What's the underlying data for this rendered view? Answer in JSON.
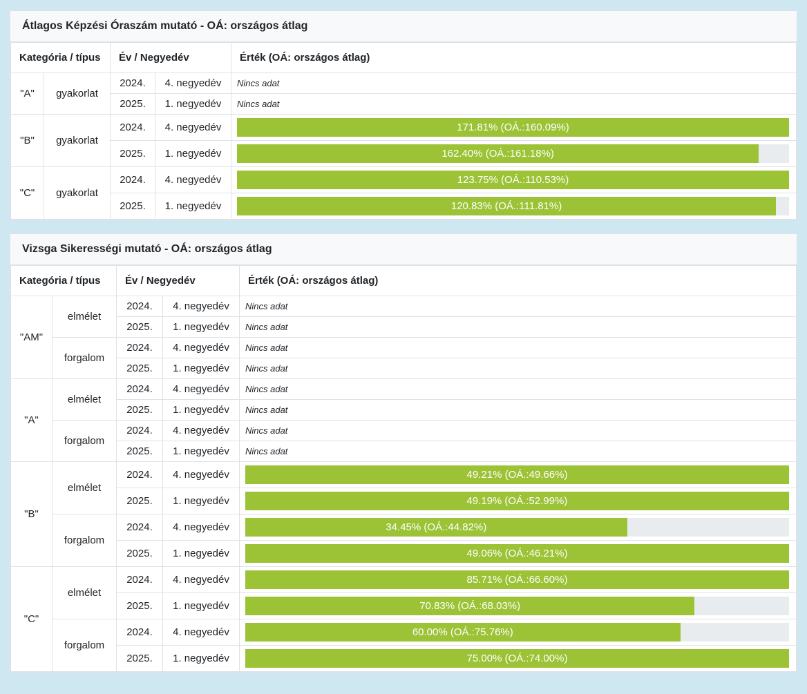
{
  "colors": {
    "page_background": "#cfe7f0",
    "bar_fill": "#9cc236",
    "bar_track": "#e9ecef",
    "border": "#dee2e6",
    "title_background": "#f8f9fa",
    "text": "#212529",
    "bar_text": "#ffffff"
  },
  "tables": [
    {
      "title": "Átlagos Képzési Óraszám mutató - OÁ: országos átlag",
      "headers": {
        "category": "Kategória / típus",
        "period": "Év / Negyedév",
        "value": "Érték (OÁ: országos átlag)"
      },
      "no_data_label": "Nincs adat",
      "groups": [
        {
          "category": "\"A\"",
          "types": [
            {
              "type": "gyakorlat",
              "rows": [
                {
                  "year": "2024.",
                  "quarter": "4. negyedév",
                  "value": null,
                  "oa": null,
                  "label": null
                },
                {
                  "year": "2025.",
                  "quarter": "1. negyedév",
                  "value": null,
                  "oa": null,
                  "label": null
                }
              ]
            }
          ]
        },
        {
          "category": "\"B\"",
          "types": [
            {
              "type": "gyakorlat",
              "rows": [
                {
                  "year": "2024.",
                  "quarter": "4. negyedév",
                  "value": 171.81,
                  "oa": 160.09,
                  "label": "171.81% (OÁ.:160.09%)"
                },
                {
                  "year": "2025.",
                  "quarter": "1. negyedév",
                  "value": 162.4,
                  "oa": 161.18,
                  "label": "162.40% (OÁ.:161.18%)"
                }
              ]
            }
          ]
        },
        {
          "category": "\"C\"",
          "types": [
            {
              "type": "gyakorlat",
              "rows": [
                {
                  "year": "2024.",
                  "quarter": "4. negyedév",
                  "value": 123.75,
                  "oa": 110.53,
                  "label": "123.75% (OÁ.:110.53%)"
                },
                {
                  "year": "2025.",
                  "quarter": "1. negyedév",
                  "value": 120.83,
                  "oa": 111.81,
                  "label": "120.83% (OÁ.:111.81%)"
                }
              ]
            }
          ]
        }
      ]
    },
    {
      "title": "Vizsga Sikerességi mutató - OÁ: országos átlag",
      "headers": {
        "category": "Kategória / típus",
        "period": "Év / Negyedév",
        "value": "Érték (OÁ: országos átlag)"
      },
      "no_data_label": "Nincs adat",
      "groups": [
        {
          "category": "\"AM\"",
          "types": [
            {
              "type": "elmélet",
              "rows": [
                {
                  "year": "2024.",
                  "quarter": "4. negyedév",
                  "value": null,
                  "oa": null,
                  "label": null
                },
                {
                  "year": "2025.",
                  "quarter": "1. negyedév",
                  "value": null,
                  "oa": null,
                  "label": null
                }
              ]
            },
            {
              "type": "forgalom",
              "rows": [
                {
                  "year": "2024.",
                  "quarter": "4. negyedév",
                  "value": null,
                  "oa": null,
                  "label": null
                },
                {
                  "year": "2025.",
                  "quarter": "1. negyedév",
                  "value": null,
                  "oa": null,
                  "label": null
                }
              ]
            }
          ]
        },
        {
          "category": "\"A\"",
          "types": [
            {
              "type": "elmélet",
              "rows": [
                {
                  "year": "2024.",
                  "quarter": "4. negyedév",
                  "value": null,
                  "oa": null,
                  "label": null
                },
                {
                  "year": "2025.",
                  "quarter": "1. negyedév",
                  "value": null,
                  "oa": null,
                  "label": null
                }
              ]
            },
            {
              "type": "forgalom",
              "rows": [
                {
                  "year": "2024.",
                  "quarter": "4. negyedév",
                  "value": null,
                  "oa": null,
                  "label": null
                },
                {
                  "year": "2025.",
                  "quarter": "1. negyedév",
                  "value": null,
                  "oa": null,
                  "label": null
                }
              ]
            }
          ]
        },
        {
          "category": "\"B\"",
          "types": [
            {
              "type": "elmélet",
              "rows": [
                {
                  "year": "2024.",
                  "quarter": "4. negyedév",
                  "value": 49.21,
                  "oa": 49.66,
                  "label": "49.21% (OÁ.:49.66%)"
                },
                {
                  "year": "2025.",
                  "quarter": "1. negyedév",
                  "value": 49.19,
                  "oa": 52.99,
                  "label": "49.19% (OÁ.:52.99%)"
                }
              ]
            },
            {
              "type": "forgalom",
              "rows": [
                {
                  "year": "2024.",
                  "quarter": "4. negyedév",
                  "value": 34.45,
                  "oa": 44.82,
                  "label": "34.45% (OÁ.:44.82%)"
                },
                {
                  "year": "2025.",
                  "quarter": "1. negyedév",
                  "value": 49.06,
                  "oa": 46.21,
                  "label": "49.06% (OÁ.:46.21%)"
                }
              ]
            }
          ]
        },
        {
          "category": "\"C\"",
          "types": [
            {
              "type": "elmélet",
              "rows": [
                {
                  "year": "2024.",
                  "quarter": "4. negyedév",
                  "value": 85.71,
                  "oa": 66.6,
                  "label": "85.71% (OÁ.:66.60%)"
                },
                {
                  "year": "2025.",
                  "quarter": "1. negyedév",
                  "value": 70.83,
                  "oa": 68.03,
                  "label": "70.83% (OÁ.:68.03%)"
                }
              ]
            },
            {
              "type": "forgalom",
              "rows": [
                {
                  "year": "2024.",
                  "quarter": "4. negyedév",
                  "value": 60.0,
                  "oa": 75.76,
                  "label": "60.00% (OÁ.:75.76%)"
                },
                {
                  "year": "2025.",
                  "quarter": "1. negyedév",
                  "value": 75.0,
                  "oa": 74.0,
                  "label": "75.00% (OÁ.:74.00%)"
                }
              ]
            }
          ]
        }
      ]
    }
  ],
  "chart_data": [
    {
      "type": "table",
      "title": "Átlagos Képzési Óraszám mutató - OÁ: országos átlag",
      "columns": [
        "Kategória",
        "típus",
        "Év",
        "Negyedév",
        "Érték %",
        "Országos átlag %"
      ],
      "rows": [
        [
          "\"A\"",
          "gyakorlat",
          "2024.",
          "4. negyedév",
          null,
          null
        ],
        [
          "\"A\"",
          "gyakorlat",
          "2025.",
          "1. negyedév",
          null,
          null
        ],
        [
          "\"B\"",
          "gyakorlat",
          "2024.",
          "4. negyedév",
          171.81,
          160.09
        ],
        [
          "\"B\"",
          "gyakorlat",
          "2025.",
          "1. negyedév",
          162.4,
          161.18
        ],
        [
          "\"C\"",
          "gyakorlat",
          "2024.",
          "4. negyedév",
          123.75,
          110.53
        ],
        [
          "\"C\"",
          "gyakorlat",
          "2025.",
          "1. negyedév",
          120.83,
          111.81
        ]
      ],
      "bar_scaling": "bar width = value / max(value in category+type group) * 100%"
    },
    {
      "type": "table",
      "title": "Vizsga Sikerességi mutató - OÁ: országos átlag",
      "columns": [
        "Kategória",
        "típus",
        "Év",
        "Negyedév",
        "Érték %",
        "Országos átlag %"
      ],
      "rows": [
        [
          "\"AM\"",
          "elmélet",
          "2024.",
          "4. negyedév",
          null,
          null
        ],
        [
          "\"AM\"",
          "elmélet",
          "2025.",
          "1. negyedév",
          null,
          null
        ],
        [
          "\"AM\"",
          "forgalom",
          "2024.",
          "4. negyedév",
          null,
          null
        ],
        [
          "\"AM\"",
          "forgalom",
          "2025.",
          "1. negyedév",
          null,
          null
        ],
        [
          "\"A\"",
          "elmélet",
          "2024.",
          "4. negyedév",
          null,
          null
        ],
        [
          "\"A\"",
          "elmélet",
          "2025.",
          "1. negyedév",
          null,
          null
        ],
        [
          "\"A\"",
          "forgalom",
          "2024.",
          "4. negyedév",
          null,
          null
        ],
        [
          "\"A\"",
          "forgalom",
          "2025.",
          "1. negyedév",
          null,
          null
        ],
        [
          "\"B\"",
          "elmélet",
          "2024.",
          "4. negyedév",
          49.21,
          49.66
        ],
        [
          "\"B\"",
          "elmélet",
          "2025.",
          "1. negyedév",
          49.19,
          52.99
        ],
        [
          "\"B\"",
          "forgalom",
          "2024.",
          "4. negyedév",
          34.45,
          44.82
        ],
        [
          "\"B\"",
          "forgalom",
          "2025.",
          "1. negyedév",
          49.06,
          46.21
        ],
        [
          "\"C\"",
          "elmélet",
          "2024.",
          "4. negyedév",
          85.71,
          66.6
        ],
        [
          "\"C\"",
          "elmélet",
          "2025.",
          "1. negyedév",
          70.83,
          68.03
        ],
        [
          "\"C\"",
          "forgalom",
          "2024.",
          "4. negyedév",
          60.0,
          75.76
        ],
        [
          "\"C\"",
          "forgalom",
          "2025.",
          "1. negyedév",
          75.0,
          74.0
        ]
      ],
      "bar_scaling": "bar width = value / max(value in category+type group) * 100%"
    }
  ]
}
